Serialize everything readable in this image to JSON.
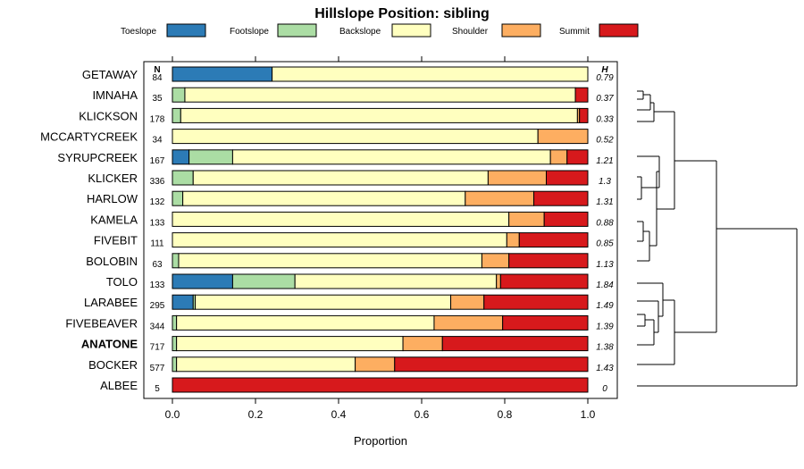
{
  "chart_data": {
    "type": "bar",
    "orientation": "horizontal",
    "stacked": true,
    "title": "Hillslope Position: sibling",
    "xlabel": "Proportion",
    "ylabel": "",
    "xlim": [
      0,
      1
    ],
    "xticks": [
      "0.0",
      "0.2",
      "0.4",
      "0.6",
      "0.8",
      "1.0"
    ],
    "legend_position": "top",
    "n_header": "N",
    "h_header": "H",
    "series": [
      {
        "name": "Toeslope",
        "color": "#2c7bb6"
      },
      {
        "name": "Footslope",
        "color": "#abdda4"
      },
      {
        "name": "Backslope",
        "color": "#ffffbf"
      },
      {
        "name": "Shoulder",
        "color": "#fdae61"
      },
      {
        "name": "Summit",
        "color": "#d7191c"
      }
    ],
    "rows": [
      {
        "label": "GETAWAY",
        "n": "84",
        "h": "0.79",
        "bold": false,
        "values": [
          0.24,
          0.0,
          0.76,
          0.0,
          0.0
        ]
      },
      {
        "label": "IMNAHA",
        "n": "35",
        "h": "0.37",
        "bold": false,
        "values": [
          0.0,
          0.03,
          0.94,
          0.0,
          0.03
        ]
      },
      {
        "label": "KLICKSON",
        "n": "178",
        "h": "0.33",
        "bold": false,
        "values": [
          0.0,
          0.02,
          0.955,
          0.005,
          0.02
        ]
      },
      {
        "label": "MCCARTYCREEK",
        "n": "34",
        "h": "0.52",
        "bold": false,
        "values": [
          0.0,
          0.0,
          0.88,
          0.12,
          0.0
        ]
      },
      {
        "label": "SYRUPCREEK",
        "n": "167",
        "h": "1.21",
        "bold": false,
        "values": [
          0.04,
          0.105,
          0.765,
          0.04,
          0.05
        ]
      },
      {
        "label": "KLICKER",
        "n": "336",
        "h": "1.3",
        "bold": false,
        "values": [
          0.0,
          0.05,
          0.71,
          0.14,
          0.1
        ]
      },
      {
        "label": "HARLOW",
        "n": "132",
        "h": "1.31",
        "bold": false,
        "values": [
          0.0,
          0.025,
          0.68,
          0.165,
          0.13
        ]
      },
      {
        "label": "KAMELA",
        "n": "133",
        "h": "0.88",
        "bold": false,
        "values": [
          0.0,
          0.0,
          0.81,
          0.085,
          0.105
        ]
      },
      {
        "label": "FIVEBIT",
        "n": "111",
        "h": "0.85",
        "bold": false,
        "values": [
          0.0,
          0.0,
          0.805,
          0.03,
          0.165
        ]
      },
      {
        "label": "BOLOBIN",
        "n": "63",
        "h": "1.13",
        "bold": false,
        "values": [
          0.0,
          0.015,
          0.73,
          0.065,
          0.19
        ]
      },
      {
        "label": "TOLO",
        "n": "133",
        "h": "1.84",
        "bold": false,
        "values": [
          0.145,
          0.15,
          0.485,
          0.01,
          0.21
        ]
      },
      {
        "label": "LARABEE",
        "n": "295",
        "h": "1.49",
        "bold": false,
        "values": [
          0.05,
          0.005,
          0.615,
          0.08,
          0.25
        ]
      },
      {
        "label": "FIVEBEAVER",
        "n": "344",
        "h": "1.39",
        "bold": false,
        "values": [
          0.0,
          0.01,
          0.62,
          0.165,
          0.205
        ]
      },
      {
        "label": "ANATONE",
        "n": "717",
        "h": "1.38",
        "bold": true,
        "values": [
          0.0,
          0.01,
          0.545,
          0.095,
          0.35
        ]
      },
      {
        "label": "BOCKER",
        "n": "577",
        "h": "1.43",
        "bold": false,
        "values": [
          0.0,
          0.01,
          0.43,
          0.095,
          0.465
        ]
      },
      {
        "label": "ALBEE",
        "n": "5",
        "h": "0",
        "bold": false,
        "values": [
          0.0,
          0.0,
          0.0,
          0.0,
          1.0
        ]
      }
    ]
  }
}
